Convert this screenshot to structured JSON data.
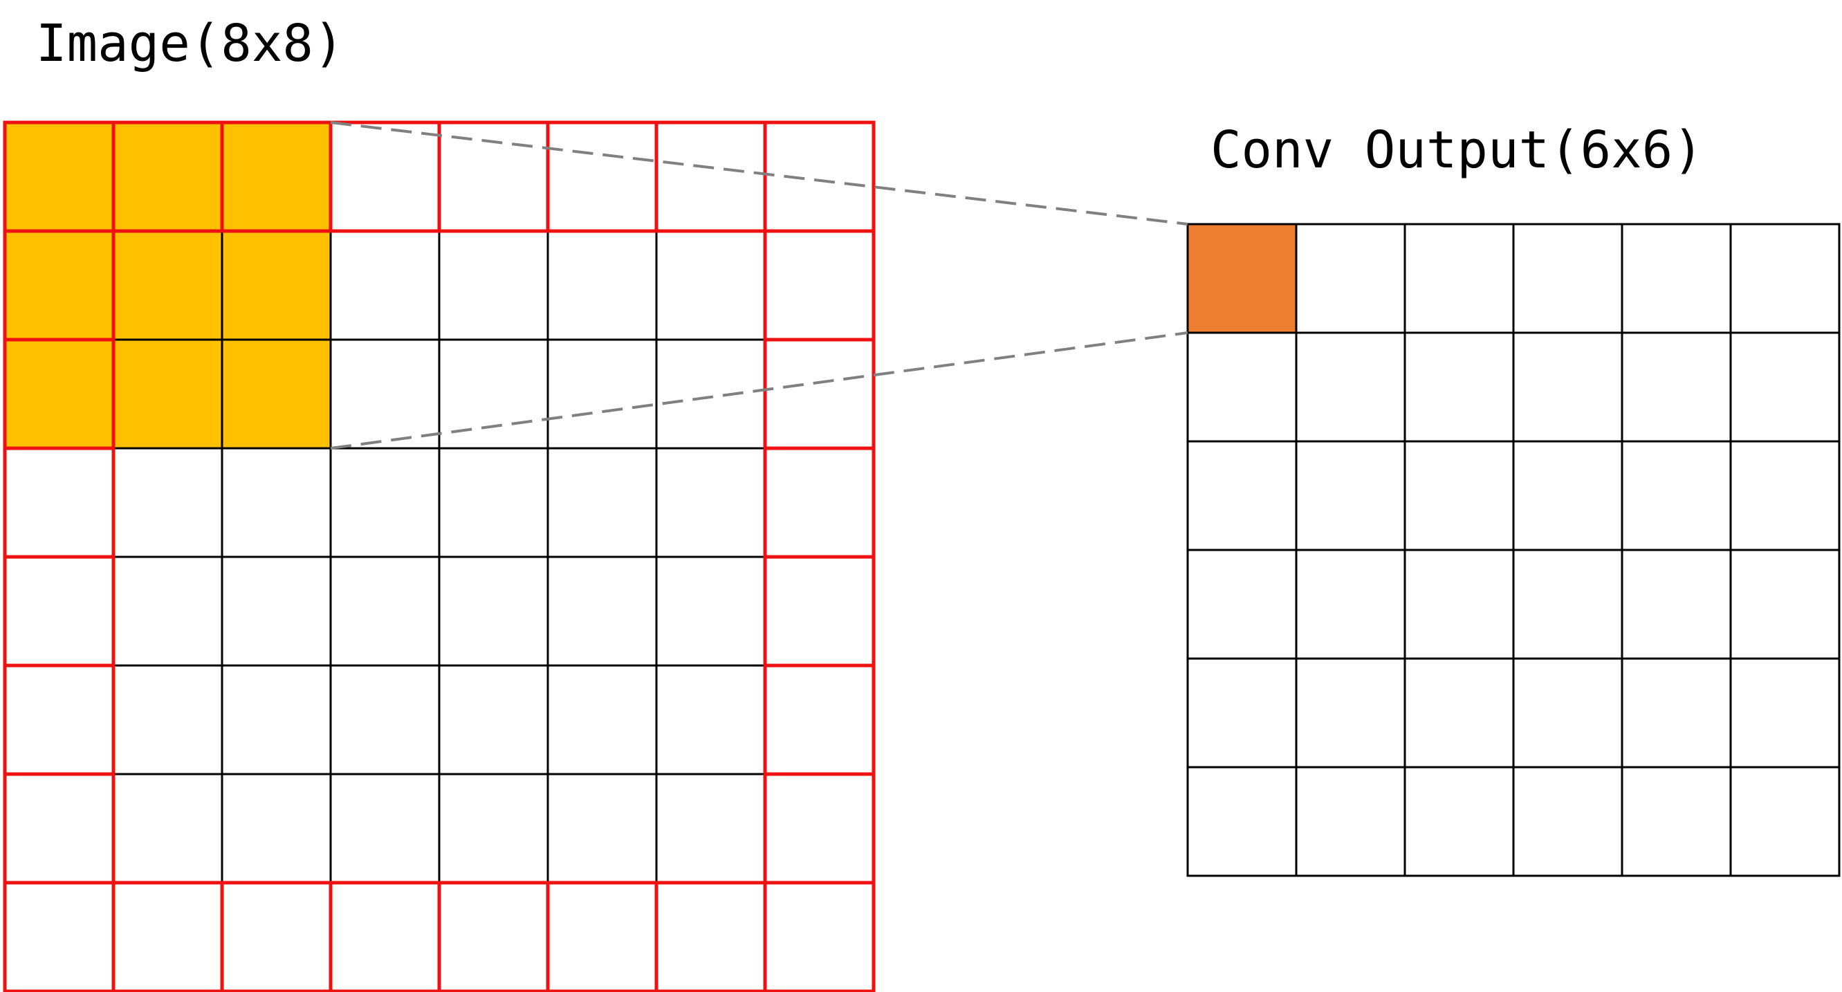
{
  "image_title": "Image(8x8)",
  "output_title": "Conv Output(6x6)",
  "input_grid": {
    "rows": 8,
    "cols": 8,
    "highlight_rows": 3,
    "highlight_cols": 3
  },
  "output_grid": {
    "rows": 6,
    "cols": 6,
    "highlight_row": 0,
    "highlight_col": 0
  },
  "colors": {
    "kernel_fill": "#FFC000",
    "output_fill": "#ED7D31",
    "padding_border": "#EE1111",
    "grid_line": "#000000",
    "connector": "#808080"
  }
}
